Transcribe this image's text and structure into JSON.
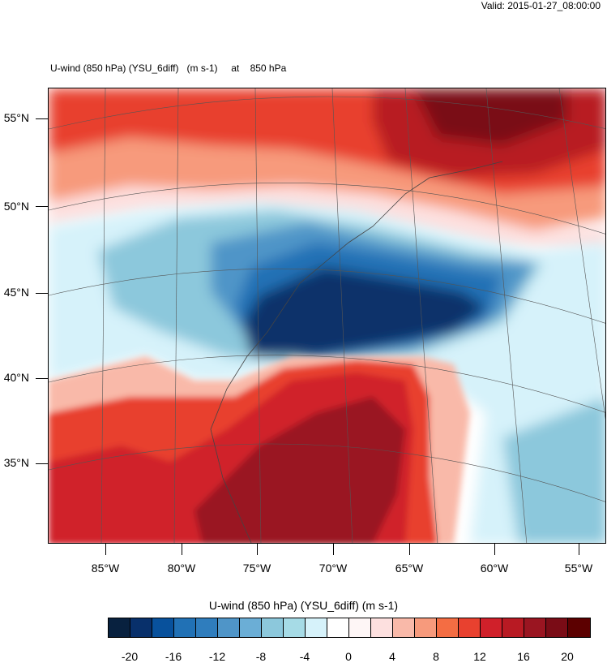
{
  "valid_label": "Valid: 2015-01-27_08:00:00",
  "title": {
    "field": "U-wind (850 hPa) (YSU_6diff)",
    "units": "(m s-1)",
    "at_word": "at",
    "level": "850 hPa"
  },
  "map": {
    "lat_labels": [
      "55°N",
      "50°N",
      "45°N",
      "40°N",
      "35°N"
    ],
    "lon_labels": [
      "85°W",
      "80°W",
      "75°W",
      "70°W",
      "65°W",
      "60°W",
      "55°W"
    ],
    "features": [
      {
        "name": "strong-negative-core",
        "value": -22,
        "color": "#082a5a"
      },
      {
        "name": "negative-band",
        "value": -12,
        "color": "#2166ac"
      },
      {
        "name": "weak-negative-ring",
        "value": -4,
        "color": "#d1f0f7"
      },
      {
        "name": "southern-positive-jet",
        "value": 14,
        "color": "#c8202b"
      },
      {
        "name": "northern-positive-jet",
        "value": 18,
        "color": "#a81420"
      }
    ]
  },
  "colorbar": {
    "title": "U-wind (850 hPa) (YSU_6diff)  (m s-1)",
    "colors": [
      "#08213f",
      "#08306b",
      "#08519c",
      "#2171b5",
      "#2f7dbd",
      "#4f95c8",
      "#6baed6",
      "#8cc8dc",
      "#a6dbe6",
      "#d6f2fa",
      "#ffffff",
      "#fef6f6",
      "#fde0df",
      "#f9b9a9",
      "#f79a7c",
      "#f46d43",
      "#e8412f",
      "#d0202a",
      "#b81a23",
      "#9a1521",
      "#7a0c16",
      "#5c0000"
    ],
    "tick_labels": [
      "-20",
      "-16",
      "-12",
      "-8",
      "-4",
      "0",
      "4",
      "8",
      "12",
      "16",
      "20"
    ]
  }
}
